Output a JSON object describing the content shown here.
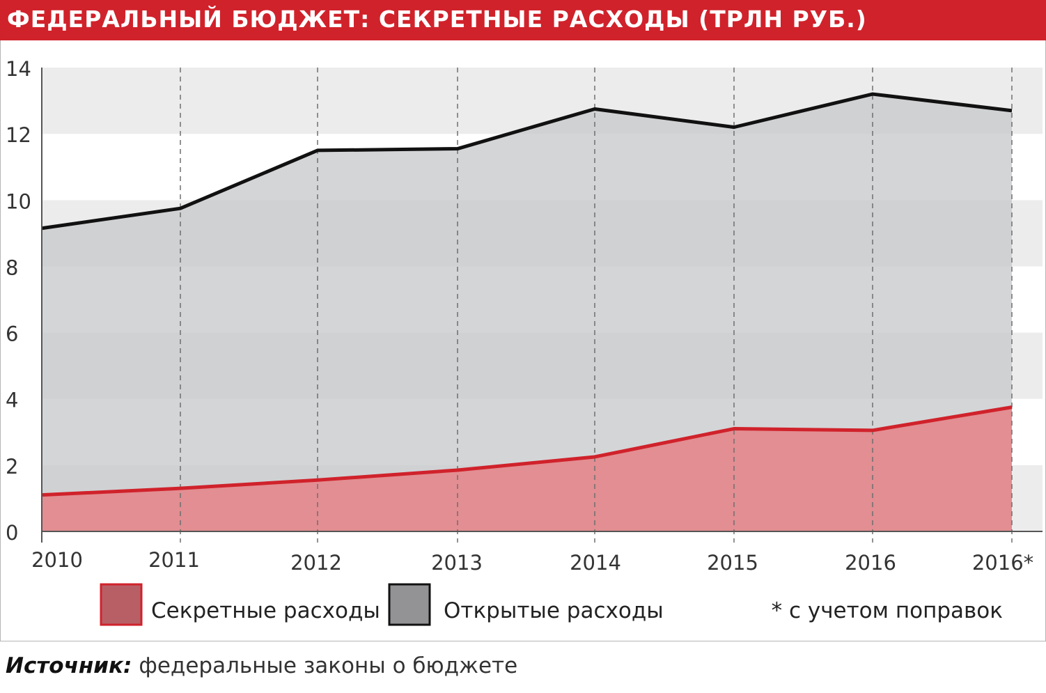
{
  "header": {
    "title": "ФЕДЕРАЛЬНЫЙ БЮДЖЕТ: СЕКРЕТНЫЕ РАСХОДЫ (ТРЛН РУБ.)"
  },
  "colors": {
    "header_bg": "#d0222b",
    "secret_fill": "#e3868b",
    "secret_line": "#d0222b",
    "open_fill": "#c8c9cc",
    "open_line": "#111111",
    "band_light": "#ececec",
    "legend_secret": "#b85f66",
    "legend_open": "#939396"
  },
  "chart_data": {
    "type": "area",
    "title": "ФЕДЕРАЛЬНЫЙ БЮДЖЕТ: СЕКРЕТНЫЕ РАСХОДЫ (ТРЛН РУБ.)",
    "categories": [
      "2010",
      "2011",
      "2012",
      "2013",
      "2014",
      "2015",
      "2016",
      "2016*"
    ],
    "series": [
      {
        "name": "Секретные расходы",
        "values": [
          1.1,
          1.3,
          1.55,
          1.85,
          2.25,
          3.1,
          3.05,
          3.75
        ]
      },
      {
        "name": "Открытые расходы",
        "values": [
          9.15,
          9.75,
          11.5,
          11.55,
          12.75,
          12.2,
          13.2,
          12.7
        ]
      }
    ],
    "ylim": [
      0,
      14
    ],
    "yticks": [
      "0",
      "2",
      "4",
      "6",
      "8",
      "10",
      "12",
      "14"
    ],
    "grid": true,
    "legend_position": "bottom",
    "footnote": "* с учетом поправок"
  },
  "source": {
    "label": "Источник:",
    "text": "федеральные законы о бюджете"
  }
}
